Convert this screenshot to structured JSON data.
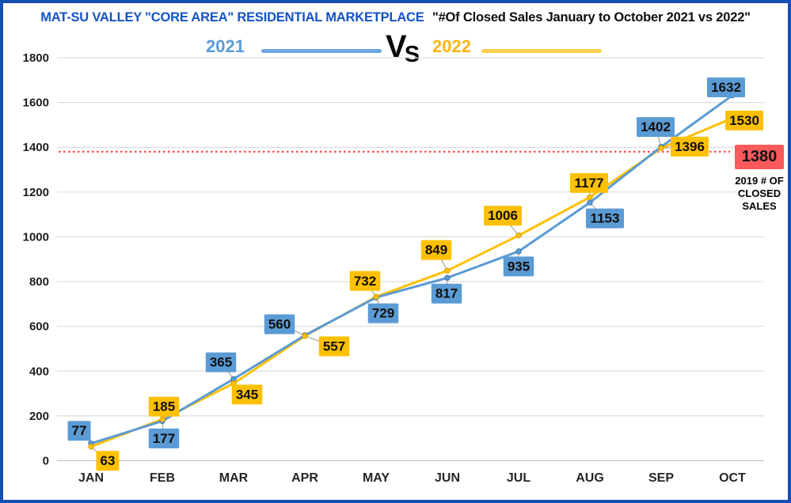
{
  "header": {
    "title_market": "MAT-SU VALLEY \"CORE AREA\" RESIDENTIAL MARKETPLACE",
    "title_sub": "\"#Of Closed Sales January to October 2021 vs 2022\""
  },
  "legend": {
    "left_label": "2021",
    "vs": "VS",
    "right_label": "2022",
    "left_color": "#5B9BD5",
    "right_color": "#FFC000"
  },
  "annotation": {
    "value": "1380",
    "caption_lines": [
      "2019 # OF",
      "CLOSED",
      "SALES"
    ],
    "box_color": "#FA5A5A"
  },
  "chart_data": {
    "type": "line",
    "title": "MAT-SU VALLEY \"CORE AREA\" RESIDENTIAL MARKETPLACE \"#Of Closed Sales January to October 2021 vs 2022\"",
    "categories": [
      "JAN",
      "FEB",
      "MAR",
      "APR",
      "MAY",
      "JUN",
      "JUL",
      "AUG",
      "SEP",
      "OCT"
    ],
    "series": [
      {
        "name": "2021",
        "color": "#5B9BD5",
        "marker_stroke": "#3E7AB8",
        "values": [
          77,
          177,
          365,
          560,
          729,
          817,
          935,
          1153,
          1402,
          1632
        ]
      },
      {
        "name": "2022",
        "color": "#FFC000",
        "marker_stroke": "#D89E00",
        "values": [
          63,
          185,
          345,
          557,
          732,
          849,
          1006,
          1177,
          1396,
          1530
        ]
      }
    ],
    "xlabel": "",
    "ylabel": "",
    "ylim": [
      0,
      1800
    ],
    "ytick_step": 200,
    "grid": true,
    "legend_position": "top",
    "reference_line": {
      "value": 1380,
      "label": "1380",
      "caption": "2019 # OF CLOSED SALES",
      "color": "#FF3838",
      "style": "dotted"
    }
  }
}
